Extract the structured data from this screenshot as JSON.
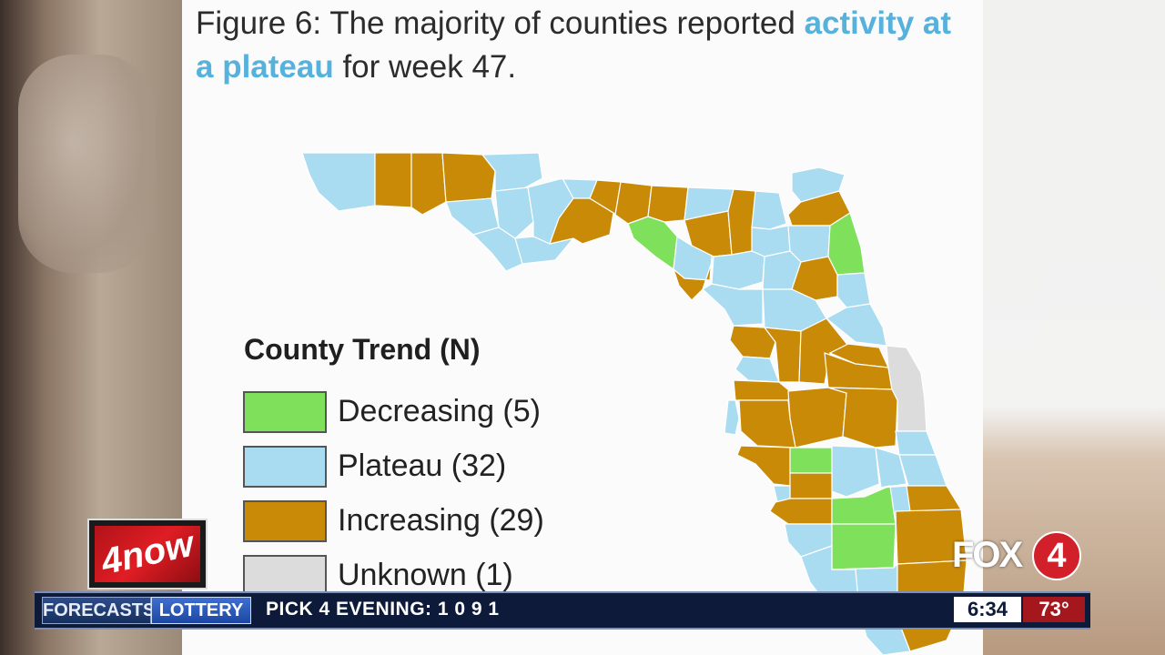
{
  "figure": {
    "title_prefix": "Figure 6: The majority of counties reported ",
    "title_highlight": "activity at a plateau",
    "title_suffix": " for week 47."
  },
  "legend": {
    "title": "County Trend (N)",
    "items": [
      {
        "label": "Decreasing (5)",
        "color": "#7fe05c"
      },
      {
        "label": "Plateau (32)",
        "color": "#a9dcf1"
      },
      {
        "label": "Increasing (29)",
        "color": "#c98a08"
      },
      {
        "label": "Unknown (1)",
        "color": "#dcdcdc"
      }
    ]
  },
  "colors": {
    "decreasing": "#7fe05c",
    "plateau": "#a9dcf1",
    "increasing": "#c98a08",
    "unknown": "#dcdcdc",
    "highlight": "#56b2dc"
  },
  "ticker": {
    "forecasts_label": "FORECASTS",
    "lottery_label": "LOTTERY",
    "text": "PICK 4 EVENING:  1  0  9  1",
    "time": "6:34",
    "temperature": "73°"
  },
  "logos": {
    "now": "4now",
    "station": "FOX",
    "station_number": "4"
  }
}
